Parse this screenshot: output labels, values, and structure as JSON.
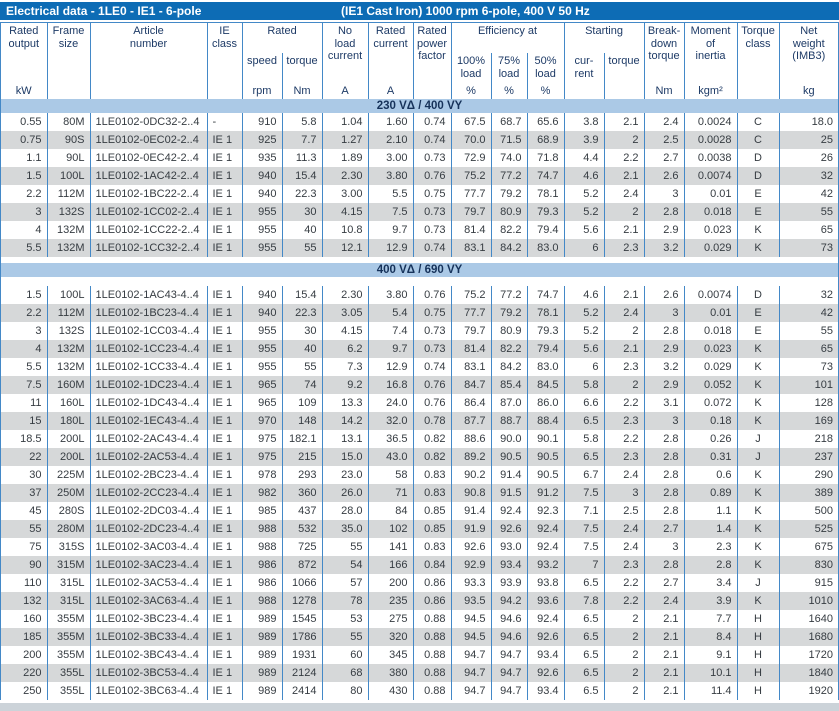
{
  "title_bar": {
    "title": "Electrical data - 1LE0 - IE1 - 6-pole",
    "subtitle": "(IE1 Cast Iron) 1000 rpm 6-pole, 400 V 50 Hz"
  },
  "colors": {
    "title_bar_bg": "#0d6cb5",
    "header_text": "#1d3a66",
    "line_blue": "#4388c7",
    "section_bar_bg": "#abc9e6",
    "section_text": "#16325a",
    "stripe_gray": "#d6d8d9",
    "data_text": "#363c42",
    "footer_strip": "#ccd3d9"
  },
  "header": {
    "rated_output": "Rated\noutput",
    "frame_size": "Frame\nsize",
    "article_number": "Article\nnumber",
    "ie_class": "IE\nclass",
    "rated_group": "Rated",
    "speed": "speed",
    "torque": "torque",
    "no_load_current": "No\nload\ncurrent",
    "rated_current": "Rated\ncurrent",
    "rated_power_factor": "Rated\npower\nfactor",
    "efficiency_group": "Efficiency at",
    "load_100": "100%\nload",
    "load_75": "75%\nload",
    "load_50": "50%\nload",
    "starting_group": "Starting",
    "starting_current": "cur-\nrent",
    "starting_torque": "torque",
    "breakdown_torque": "Break-\ndown\ntorque",
    "moment_of_inertia": "Moment\nof\ninertia",
    "torque_class": "Torque\nclass",
    "net_weight": "Net\nweight\n(IMB3)",
    "units": [
      "kW",
      "",
      "",
      "",
      "rpm",
      "Nm",
      "A",
      "A",
      "",
      "%",
      "%",
      "%",
      "",
      "",
      "Nm",
      "kgm²",
      "",
      "kg"
    ]
  },
  "table": {
    "sections": [
      {
        "label": "230 VΔ / 400 VY",
        "rows": [
          [
            "0.55",
            "80M",
            "1LE0102-0DC32-2..4",
            "-",
            "910",
            "5.8",
            "1.04",
            "1.60",
            "0.74",
            "67.5",
            "68.7",
            "65.6",
            "3.8",
            "2.1",
            "2.4",
            "0.0024",
            "C",
            "18.0"
          ],
          [
            "0.75",
            "90S",
            "1LE0102-0EC02-2..4",
            "IE 1",
            "925",
            "7.7",
            "1.27",
            "2.10",
            "0.74",
            "70.0",
            "71.5",
            "68.9",
            "3.9",
            "2",
            "2.5",
            "0.0028",
            "C",
            "25"
          ],
          [
            "1.1",
            "90L",
            "1LE0102-0EC42-2..4",
            "IE 1",
            "935",
            "11.3",
            "1.89",
            "3.00",
            "0.73",
            "72.9",
            "74.0",
            "71.8",
            "4.4",
            "2.2",
            "2.7",
            "0.0038",
            "D",
            "26"
          ],
          [
            "1.5",
            "100L",
            "1LE0102-1AC42-2..4",
            "IE 1",
            "940",
            "15.4",
            "2.30",
            "3.80",
            "0.76",
            "75.2",
            "77.2",
            "74.7",
            "4.6",
            "2.1",
            "2.6",
            "0.0074",
            "D",
            "32"
          ],
          [
            "2.2",
            "112M",
            "1LE0102-1BC22-2..4",
            "IE 1",
            "940",
            "22.3",
            "3.00",
            "5.5",
            "0.75",
            "77.7",
            "79.2",
            "78.1",
            "5.2",
            "2.4",
            "3",
            "0.01",
            "E",
            "42"
          ],
          [
            "3",
            "132S",
            "1LE0102-1CC02-2..4",
            "IE 1",
            "955",
            "30",
            "4.15",
            "7.5",
            "0.73",
            "79.7",
            "80.9",
            "79.3",
            "5.2",
            "2",
            "2.8",
            "0.018",
            "E",
            "55"
          ],
          [
            "4",
            "132M",
            "1LE0102-1CC22-2..4",
            "IE 1",
            "955",
            "40",
            "10.8",
            "9.7",
            "0.73",
            "81.4",
            "82.2",
            "79.4",
            "5.6",
            "2.1",
            "2.9",
            "0.023",
            "K",
            "65"
          ],
          [
            "5.5",
            "132M",
            "1LE0102-1CC32-2..4",
            "IE 1",
            "955",
            "55",
            "12.1",
            "12.9",
            "0.74",
            "83.1",
            "84.2",
            "83.0",
            "6",
            "2.3",
            "3.2",
            "0.029",
            "K",
            "73"
          ]
        ]
      },
      {
        "label": "400 VΔ / 690 VY",
        "rows": [
          [
            "1.5",
            "100L",
            "1LE0102-1AC43-4..4",
            "IE 1",
            "940",
            "15.4",
            "2.30",
            "3.80",
            "0.76",
            "75.2",
            "77.2",
            "74.7",
            "4.6",
            "2.1",
            "2.6",
            "0.0074",
            "D",
            "32"
          ],
          [
            "2.2",
            "112M",
            "1LE0102-1BC23-4..4",
            "IE 1",
            "940",
            "22.3",
            "3.05",
            "5.4",
            "0.75",
            "77.7",
            "79.2",
            "78.1",
            "5.2",
            "2.4",
            "3",
            "0.01",
            "E",
            "42"
          ],
          [
            "3",
            "132S",
            "1LE0102-1CC03-4..4",
            "IE 1",
            "955",
            "30",
            "4.15",
            "7.4",
            "0.73",
            "79.7",
            "80.9",
            "79.3",
            "5.2",
            "2",
            "2.8",
            "0.018",
            "E",
            "55"
          ],
          [
            "4",
            "132M",
            "1LE0102-1CC23-4..4",
            "IE 1",
            "955",
            "40",
            "6.2",
            "9.7",
            "0.73",
            "81.4",
            "82.2",
            "79.4",
            "5.6",
            "2.1",
            "2.9",
            "0.023",
            "K",
            "65"
          ],
          [
            "5.5",
            "132M",
            "1LE0102-1CC33-4..4",
            "IE 1",
            "955",
            "55",
            "7.3",
            "12.9",
            "0.74",
            "83.1",
            "84.2",
            "83.0",
            "6",
            "2.3",
            "3.2",
            "0.029",
            "K",
            "73"
          ],
          [
            "7.5",
            "160M",
            "1LE0102-1DC23-4..4",
            "IE 1",
            "965",
            "74",
            "9.2",
            "16.8",
            "0.76",
            "84.7",
            "85.4",
            "84.5",
            "5.8",
            "2",
            "2.9",
            "0.052",
            "K",
            "101"
          ],
          [
            "11",
            "160L",
            "1LE0102-1DC43-4..4",
            "IE 1",
            "965",
            "109",
            "13.3",
            "24.0",
            "0.76",
            "86.4",
            "87.0",
            "86.0",
            "6.6",
            "2.2",
            "3.1",
            "0.072",
            "K",
            "128"
          ],
          [
            "15",
            "180L",
            "1LE0102-1EC43-4..4",
            "IE 1",
            "970",
            "148",
            "14.2",
            "32.0",
            "0.78",
            "87.7",
            "88.7",
            "88.4",
            "6.5",
            "2.3",
            "3",
            "0.18",
            "K",
            "169"
          ],
          [
            "18.5",
            "200L",
            "1LE0102-2AC43-4..4",
            "IE 1",
            "975",
            "182.1",
            "13.1",
            "36.5",
            "0.82",
            "88.6",
            "90.0",
            "90.1",
            "5.8",
            "2.2",
            "2.8",
            "0.26",
            "J",
            "218"
          ],
          [
            "22",
            "200L",
            "1LE0102-2AC53-4..4",
            "IE 1",
            "975",
            "215",
            "15.0",
            "43.0",
            "0.82",
            "89.2",
            "90.5",
            "90.5",
            "6.5",
            "2.3",
            "2.8",
            "0.31",
            "J",
            "237"
          ],
          [
            "30",
            "225M",
            "1LE0102-2BC23-4..4",
            "IE 1",
            "978",
            "293",
            "23.0",
            "58",
            "0.83",
            "90.2",
            "91.4",
            "90.5",
            "6.7",
            "2.4",
            "2.8",
            "0.6",
            "K",
            "290"
          ],
          [
            "37",
            "250M",
            "1LE0102-2CC23-4..4",
            "IE 1",
            "982",
            "360",
            "26.0",
            "71",
            "0.83",
            "90.8",
            "91.5",
            "91.2",
            "7.5",
            "3",
            "2.8",
            "0.89",
            "K",
            "389"
          ],
          [
            "45",
            "280S",
            "1LE0102-2DC03-4..4",
            "IE 1",
            "985",
            "437",
            "28.0",
            "84",
            "0.85",
            "91.4",
            "92.4",
            "92.3",
            "7.1",
            "2.5",
            "2.8",
            "1.1",
            "K",
            "500"
          ],
          [
            "55",
            "280M",
            "1LE0102-2DC23-4..4",
            "IE 1",
            "988",
            "532",
            "35.0",
            "102",
            "0.85",
            "91.9",
            "92.6",
            "92.4",
            "7.5",
            "2.4",
            "2.7",
            "1.4",
            "K",
            "525"
          ],
          [
            "75",
            "315S",
            "1LE0102-3AC03-4..4",
            "IE 1",
            "988",
            "725",
            "55",
            "141",
            "0.83",
            "92.6",
            "93.0",
            "92.4",
            "7.5",
            "2.4",
            "3",
            "2.3",
            "K",
            "675"
          ],
          [
            "90",
            "315M",
            "1LE0102-3AC23-4..4",
            "IE 1",
            "986",
            "872",
            "54",
            "166",
            "0.84",
            "92.9",
            "93.4",
            "93.2",
            "7",
            "2.3",
            "2.8",
            "2.8",
            "K",
            "830"
          ],
          [
            "110",
            "315L",
            "1LE0102-3AC53-4..4",
            "IE 1",
            "986",
            "1066",
            "57",
            "200",
            "0.86",
            "93.3",
            "93.9",
            "93.8",
            "6.5",
            "2.2",
            "2.7",
            "3.4",
            "J",
            "915"
          ],
          [
            "132",
            "315L",
            "1LE0102-3AC63-4..4",
            "IE 1",
            "988",
            "1278",
            "78",
            "235",
            "0.86",
            "93.5",
            "94.2",
            "93.6",
            "7.8",
            "2.2",
            "2.4",
            "3.9",
            "K",
            "1010"
          ],
          [
            "160",
            "355M",
            "1LE0102-3BC23-4..4",
            "IE 1",
            "989",
            "1545",
            "53",
            "275",
            "0.88",
            "94.5",
            "94.6",
            "92.4",
            "6.5",
            "2",
            "2.1",
            "7.7",
            "H",
            "1640"
          ],
          [
            "185",
            "355M",
            "1LE0102-3BC33-4..4",
            "IE 1",
            "989",
            "1786",
            "55",
            "320",
            "0.88",
            "94.5",
            "94.6",
            "92.6",
            "6.5",
            "2",
            "2.1",
            "8.4",
            "H",
            "1680"
          ],
          [
            "200",
            "355M",
            "1LE0102-3BC43-4..4",
            "IE 1",
            "989",
            "1931",
            "60",
            "345",
            "0.88",
            "94.7",
            "94.7",
            "93.4",
            "6.5",
            "2",
            "2.1",
            "9.1",
            "H",
            "1720"
          ],
          [
            "220",
            "355L",
            "1LE0102-3BC53-4..4",
            "IE 1",
            "989",
            "2124",
            "68",
            "380",
            "0.88",
            "94.7",
            "94.7",
            "92.6",
            "6.5",
            "2",
            "2.1",
            "10.1",
            "H",
            "1840"
          ],
          [
            "250",
            "355L",
            "1LE0102-3BC63-4..4",
            "IE 1",
            "989",
            "2414",
            "80",
            "430",
            "0.88",
            "94.7",
            "94.7",
            "93.4",
            "6.5",
            "2",
            "2.1",
            "11.4",
            "H",
            "1920"
          ]
        ]
      }
    ]
  }
}
